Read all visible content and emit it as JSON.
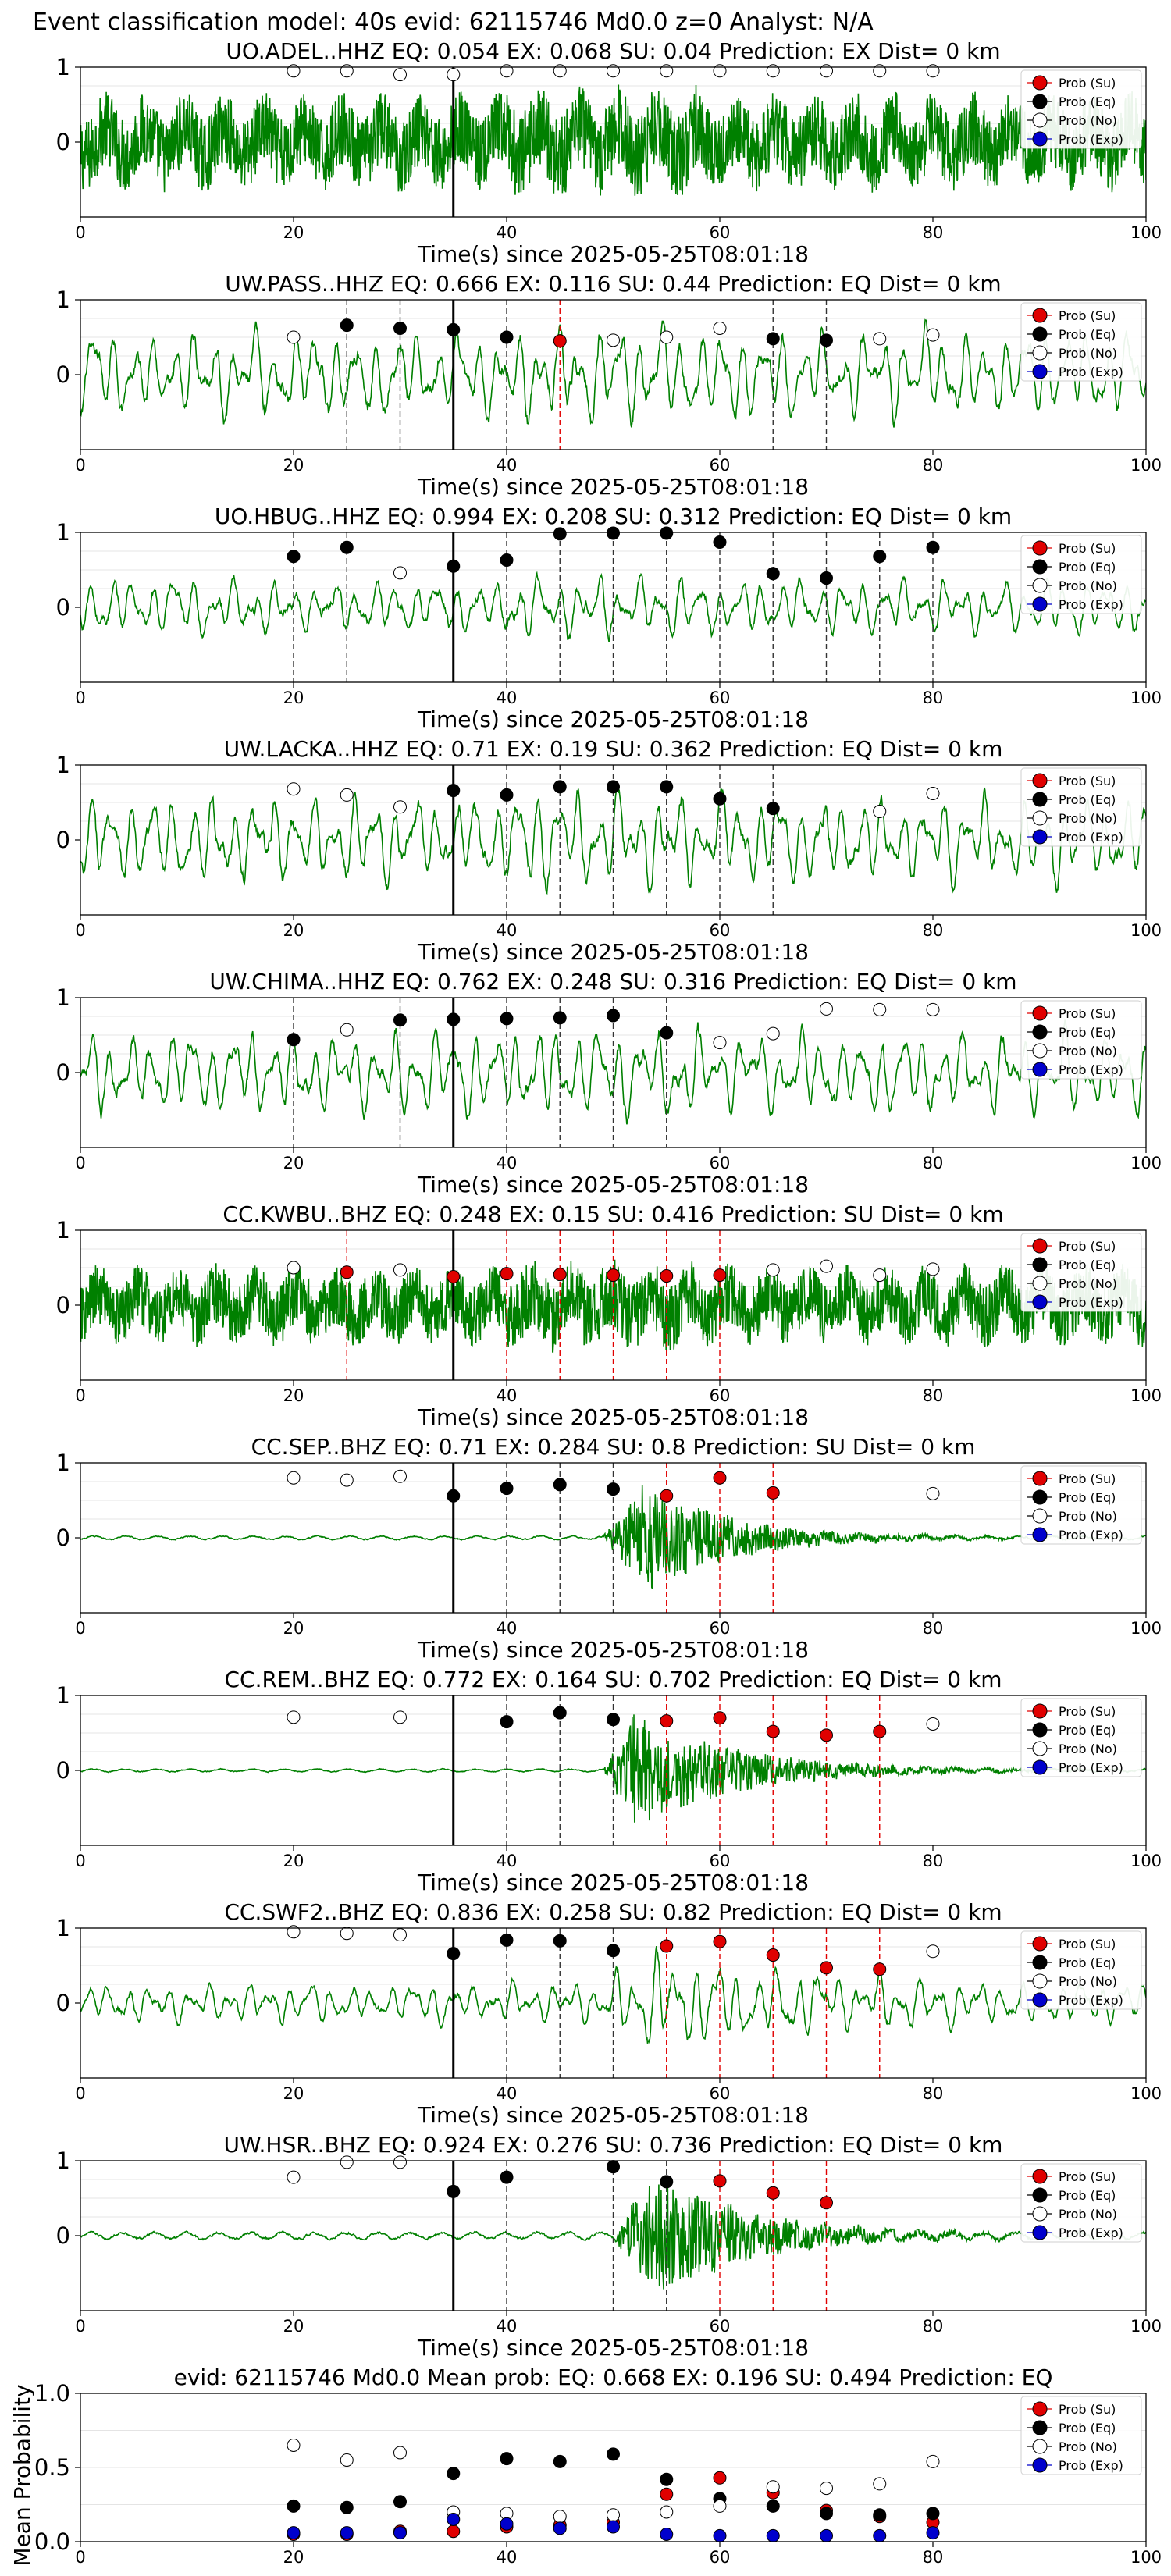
{
  "suptitle": "Event classification model: 40s evid: 62115746 Md0.0 z=0 Analyst: N/A",
  "colors": {
    "waveform": "#008000",
    "su": "#e00000",
    "eq": "#000000",
    "no_fill": "#ffffff",
    "exp": "#0000cc",
    "origin_line": "#000000",
    "eq_vline": "#333333",
    "su_vline": "#e00000"
  },
  "legend_labels": [
    "Prob (Su)",
    "Prob (Eq)",
    "Prob (No)",
    "Prob (Exp)"
  ],
  "chart_data": [
    {
      "type": "line",
      "title": "UO.ADEL..HHZ   EQ: 0.054  EX: 0.068  SU: 0.04   Prediction: EX    Dist= 0 km",
      "xlabel": "Time(s) since 2025-05-25T08:01:18",
      "xlim": [
        0,
        100
      ],
      "ylim": [
        -1,
        1
      ],
      "xticks": [
        "0",
        "20",
        "40",
        "60",
        "80",
        "100"
      ],
      "yticks": [
        "0",
        "1"
      ],
      "legend_position": "upper-right",
      "waveform": {
        "style": "noisy",
        "base_amp": 0.55,
        "burst": null
      },
      "origin_time": 35,
      "prob_markers": [
        {
          "t": 20,
          "class": "no",
          "p": 0.95
        },
        {
          "t": 25,
          "class": "no",
          "p": 0.95
        },
        {
          "t": 30,
          "class": "no",
          "p": 0.9
        },
        {
          "t": 35,
          "class": "no",
          "p": 0.9
        },
        {
          "t": 40,
          "class": "no",
          "p": 0.95
        },
        {
          "t": 45,
          "class": "no",
          "p": 0.95
        },
        {
          "t": 50,
          "class": "no",
          "p": 0.95
        },
        {
          "t": 55,
          "class": "no",
          "p": 0.95
        },
        {
          "t": 60,
          "class": "no",
          "p": 0.95
        },
        {
          "t": 65,
          "class": "no",
          "p": 0.95
        },
        {
          "t": 70,
          "class": "no",
          "p": 0.95
        },
        {
          "t": 75,
          "class": "no",
          "p": 0.95
        },
        {
          "t": 80,
          "class": "no",
          "p": 0.95
        }
      ]
    },
    {
      "type": "line",
      "title": "UW.PASS..HHZ   EQ: 0.666  EX: 0.116  SU: 0.44   Prediction: EQ    Dist= 0 km",
      "xlabel": "Time(s) since 2025-05-25T08:01:18",
      "xlim": [
        0,
        100
      ],
      "ylim": [
        -1,
        1
      ],
      "xticks": [
        "0",
        "20",
        "40",
        "60",
        "80",
        "100"
      ],
      "yticks": [
        "0",
        "1"
      ],
      "legend_position": "upper-right",
      "waveform": {
        "style": "smooth",
        "base_amp": 0.55,
        "burst": null
      },
      "origin_time": 35,
      "prob_markers": [
        {
          "t": 20,
          "class": "no",
          "p": 0.5
        },
        {
          "t": 25,
          "class": "eq",
          "p": 0.66
        },
        {
          "t": 30,
          "class": "eq",
          "p": 0.62
        },
        {
          "t": 35,
          "class": "eq",
          "p": 0.6
        },
        {
          "t": 40,
          "class": "eq",
          "p": 0.5
        },
        {
          "t": 45,
          "class": "su",
          "p": 0.45
        },
        {
          "t": 50,
          "class": "no",
          "p": 0.46
        },
        {
          "t": 55,
          "class": "no",
          "p": 0.5
        },
        {
          "t": 60,
          "class": "no",
          "p": 0.62
        },
        {
          "t": 65,
          "class": "eq",
          "p": 0.48
        },
        {
          "t": 70,
          "class": "eq",
          "p": 0.46
        },
        {
          "t": 75,
          "class": "no",
          "p": 0.48
        },
        {
          "t": 80,
          "class": "no",
          "p": 0.53
        }
      ]
    },
    {
      "type": "line",
      "title": "UO.HBUG..HHZ   EQ: 0.994  EX: 0.208  SU: 0.312   Prediction: EQ    Dist= 0 km",
      "xlabel": "Time(s) since 2025-05-25T08:01:18",
      "xlim": [
        0,
        100
      ],
      "ylim": [
        -1,
        1
      ],
      "xticks": [
        "0",
        "20",
        "40",
        "60",
        "80",
        "100"
      ],
      "yticks": [
        "0",
        "1"
      ],
      "legend_position": "upper-right",
      "waveform": {
        "style": "smooth",
        "base_amp": 0.35,
        "burst": null
      },
      "origin_time": 35,
      "prob_markers": [
        {
          "t": 20,
          "class": "eq",
          "p": 0.68
        },
        {
          "t": 25,
          "class": "eq",
          "p": 0.8
        },
        {
          "t": 30,
          "class": "no",
          "p": 0.46
        },
        {
          "t": 35,
          "class": "eq",
          "p": 0.55
        },
        {
          "t": 40,
          "class": "eq",
          "p": 0.63
        },
        {
          "t": 45,
          "class": "eq",
          "p": 0.98
        },
        {
          "t": 50,
          "class": "eq",
          "p": 0.99
        },
        {
          "t": 55,
          "class": "eq",
          "p": 0.99
        },
        {
          "t": 60,
          "class": "eq",
          "p": 0.87
        },
        {
          "t": 65,
          "class": "eq",
          "p": 0.45
        },
        {
          "t": 70,
          "class": "eq",
          "p": 0.39
        },
        {
          "t": 75,
          "class": "eq",
          "p": 0.68
        },
        {
          "t": 80,
          "class": "eq",
          "p": 0.8
        }
      ]
    },
    {
      "type": "line",
      "title": "UW.LACKA..HHZ   EQ: 0.71  EX: 0.19  SU: 0.362   Prediction: EQ    Dist= 0 km",
      "xlabel": "Time(s) since 2025-05-25T08:01:18",
      "xlim": [
        0,
        100
      ],
      "ylim": [
        -1,
        1
      ],
      "xticks": [
        "0",
        "20",
        "40",
        "60",
        "80",
        "100"
      ],
      "yticks": [
        "0",
        "1"
      ],
      "legend_position": "upper-right",
      "waveform": {
        "style": "smooth",
        "base_amp": 0.55,
        "burst": null
      },
      "origin_time": 35,
      "prob_markers": [
        {
          "t": 20,
          "class": "no",
          "p": 0.68
        },
        {
          "t": 25,
          "class": "no",
          "p": 0.6
        },
        {
          "t": 30,
          "class": "no",
          "p": 0.44
        },
        {
          "t": 35,
          "class": "eq",
          "p": 0.66
        },
        {
          "t": 40,
          "class": "eq",
          "p": 0.6
        },
        {
          "t": 45,
          "class": "eq",
          "p": 0.71
        },
        {
          "t": 50,
          "class": "eq",
          "p": 0.71
        },
        {
          "t": 55,
          "class": "eq",
          "p": 0.71
        },
        {
          "t": 60,
          "class": "eq",
          "p": 0.55
        },
        {
          "t": 65,
          "class": "eq",
          "p": 0.42
        },
        {
          "t": 75,
          "class": "no",
          "p": 0.38
        },
        {
          "t": 80,
          "class": "no",
          "p": 0.62
        }
      ]
    },
    {
      "type": "line",
      "title": "UW.CHIMA..HHZ   EQ: 0.762  EX: 0.248  SU: 0.316   Prediction: EQ    Dist= 0 km",
      "xlabel": "Time(s) since 2025-05-25T08:01:18",
      "xlim": [
        0,
        100
      ],
      "ylim": [
        -1,
        1
      ],
      "xticks": [
        "0",
        "20",
        "40",
        "60",
        "80",
        "100"
      ],
      "yticks": [
        "0",
        "1"
      ],
      "legend_position": "upper-right",
      "waveform": {
        "style": "smooth",
        "base_amp": 0.5,
        "burst": null
      },
      "origin_time": 35,
      "prob_markers": [
        {
          "t": 20,
          "class": "eq",
          "p": 0.44
        },
        {
          "t": 25,
          "class": "no",
          "p": 0.57
        },
        {
          "t": 30,
          "class": "eq",
          "p": 0.7
        },
        {
          "t": 35,
          "class": "eq",
          "p": 0.71
        },
        {
          "t": 40,
          "class": "eq",
          "p": 0.72
        },
        {
          "t": 45,
          "class": "eq",
          "p": 0.73
        },
        {
          "t": 50,
          "class": "eq",
          "p": 0.76
        },
        {
          "t": 55,
          "class": "eq",
          "p": 0.53
        },
        {
          "t": 60,
          "class": "no",
          "p": 0.4
        },
        {
          "t": 65,
          "class": "no",
          "p": 0.52
        },
        {
          "t": 70,
          "class": "no",
          "p": 0.85
        },
        {
          "t": 75,
          "class": "no",
          "p": 0.84
        },
        {
          "t": 80,
          "class": "no",
          "p": 0.84
        }
      ]
    },
    {
      "type": "line",
      "title": "CC.KWBU..BHZ   EQ: 0.248  EX: 0.15  SU: 0.416   Prediction: SU    Dist= 0 km",
      "xlabel": "Time(s) since 2025-05-25T08:01:18",
      "xlim": [
        0,
        100
      ],
      "ylim": [
        -1,
        1
      ],
      "xticks": [
        "0",
        "20",
        "40",
        "60",
        "80",
        "100"
      ],
      "yticks": [
        "0",
        "1"
      ],
      "legend_position": "upper-right",
      "waveform": {
        "style": "noisy",
        "base_amp": 0.45,
        "burst": null
      },
      "origin_time": 35,
      "prob_markers": [
        {
          "t": 20,
          "class": "no",
          "p": 0.5
        },
        {
          "t": 25,
          "class": "su",
          "p": 0.44
        },
        {
          "t": 30,
          "class": "no",
          "p": 0.47
        },
        {
          "t": 35,
          "class": "su",
          "p": 0.38
        },
        {
          "t": 40,
          "class": "su",
          "p": 0.42
        },
        {
          "t": 45,
          "class": "su",
          "p": 0.41
        },
        {
          "t": 50,
          "class": "su",
          "p": 0.4
        },
        {
          "t": 55,
          "class": "su",
          "p": 0.39
        },
        {
          "t": 60,
          "class": "su",
          "p": 0.4
        },
        {
          "t": 65,
          "class": "no",
          "p": 0.47
        },
        {
          "t": 70,
          "class": "no",
          "p": 0.52
        },
        {
          "t": 75,
          "class": "no",
          "p": 0.4
        },
        {
          "t": 80,
          "class": "no",
          "p": 0.48
        }
      ]
    },
    {
      "type": "line",
      "title": "CC.SEP..BHZ   EQ: 0.71  EX: 0.284  SU: 0.8   Prediction: SU    Dist= 0 km",
      "xlabel": "Time(s) since 2025-05-25T08:01:18",
      "xlim": [
        0,
        100
      ],
      "ylim": [
        -1,
        1
      ],
      "xticks": [
        "0",
        "20",
        "40",
        "60",
        "80",
        "100"
      ],
      "yticks": [
        "0",
        "1"
      ],
      "legend_position": "upper-right",
      "waveform": {
        "style": "quiet",
        "base_amp": 0.03,
        "burst": {
          "start": 49,
          "peak": 53,
          "amp": 0.75,
          "decay": 8
        }
      },
      "origin_time": 35,
      "prob_markers": [
        {
          "t": 20,
          "class": "no",
          "p": 0.8
        },
        {
          "t": 25,
          "class": "no",
          "p": 0.77
        },
        {
          "t": 30,
          "class": "no",
          "p": 0.82
        },
        {
          "t": 35,
          "class": "eq",
          "p": 0.56
        },
        {
          "t": 40,
          "class": "eq",
          "p": 0.66
        },
        {
          "t": 45,
          "class": "eq",
          "p": 0.71
        },
        {
          "t": 50,
          "class": "eq",
          "p": 0.65
        },
        {
          "t": 55,
          "class": "su",
          "p": 0.56
        },
        {
          "t": 60,
          "class": "su",
          "p": 0.8
        },
        {
          "t": 65,
          "class": "su",
          "p": 0.6
        },
        {
          "t": 80,
          "class": "no",
          "p": 0.59
        }
      ]
    },
    {
      "type": "line",
      "title": "CC.REM..BHZ   EQ: 0.772  EX: 0.164  SU: 0.702   Prediction: EQ    Dist= 0 km",
      "xlabel": "Time(s) since 2025-05-25T08:01:18",
      "xlim": [
        0,
        100
      ],
      "ylim": [
        -1,
        1
      ],
      "xticks": [
        "0",
        "20",
        "40",
        "60",
        "80",
        "100"
      ],
      "yticks": [
        "0",
        "1"
      ],
      "legend_position": "upper-right",
      "waveform": {
        "style": "quiet",
        "base_amp": 0.025,
        "burst": {
          "start": 49,
          "peak": 52,
          "amp": 0.75,
          "decay": 10
        }
      },
      "origin_time": 35,
      "prob_markers": [
        {
          "t": 20,
          "class": "no",
          "p": 0.71
        },
        {
          "t": 30,
          "class": "no",
          "p": 0.71
        },
        {
          "t": 40,
          "class": "eq",
          "p": 0.65
        },
        {
          "t": 45,
          "class": "eq",
          "p": 0.77
        },
        {
          "t": 50,
          "class": "eq",
          "p": 0.68
        },
        {
          "t": 55,
          "class": "su",
          "p": 0.66
        },
        {
          "t": 60,
          "class": "su",
          "p": 0.7
        },
        {
          "t": 65,
          "class": "su",
          "p": 0.52
        },
        {
          "t": 70,
          "class": "su",
          "p": 0.47
        },
        {
          "t": 75,
          "class": "su",
          "p": 0.52
        },
        {
          "t": 80,
          "class": "no",
          "p": 0.62
        }
      ]
    },
    {
      "type": "line",
      "title": "CC.SWF2..BHZ   EQ: 0.836  EX: 0.258  SU: 0.82   Prediction: EQ    Dist= 0 km",
      "xlabel": "Time(s) since 2025-05-25T08:01:18",
      "xlim": [
        0,
        100
      ],
      "ylim": [
        -1,
        1
      ],
      "xticks": [
        "0",
        "20",
        "40",
        "60",
        "80",
        "100"
      ],
      "yticks": [
        "0",
        "1"
      ],
      "legend_position": "upper-right",
      "waveform": {
        "style": "smooth",
        "base_amp": 0.25,
        "burst": {
          "start": 49,
          "peak": 54,
          "amp": 0.7,
          "decay": 14
        }
      },
      "origin_time": 35,
      "prob_markers": [
        {
          "t": 20,
          "class": "no",
          "p": 0.95
        },
        {
          "t": 25,
          "class": "no",
          "p": 0.93
        },
        {
          "t": 30,
          "class": "no",
          "p": 0.91
        },
        {
          "t": 35,
          "class": "eq",
          "p": 0.66
        },
        {
          "t": 40,
          "class": "eq",
          "p": 0.84
        },
        {
          "t": 45,
          "class": "eq",
          "p": 0.83
        },
        {
          "t": 50,
          "class": "eq",
          "p": 0.7
        },
        {
          "t": 55,
          "class": "su",
          "p": 0.76
        },
        {
          "t": 60,
          "class": "su",
          "p": 0.82
        },
        {
          "t": 65,
          "class": "su",
          "p": 0.64
        },
        {
          "t": 70,
          "class": "su",
          "p": 0.47
        },
        {
          "t": 75,
          "class": "su",
          "p": 0.45
        },
        {
          "t": 80,
          "class": "no",
          "p": 0.69
        }
      ]
    },
    {
      "type": "line",
      "title": "UW.HSR..BHZ   EQ: 0.924  EX: 0.276  SU: 0.736   Prediction: EQ    Dist= 0 km",
      "xlabel": "Time(s) since 2025-05-25T08:01:18",
      "xlim": [
        0,
        100
      ],
      "ylim": [
        -1,
        1
      ],
      "xticks": [
        "0",
        "20",
        "40",
        "60",
        "80",
        "100"
      ],
      "yticks": [
        "0",
        "1"
      ],
      "legend_position": "upper-right",
      "waveform": {
        "style": "quiet",
        "base_amp": 0.06,
        "burst": {
          "start": 50,
          "peak": 54,
          "amp": 0.85,
          "decay": 9
        }
      },
      "origin_time": 35,
      "prob_markers": [
        {
          "t": 20,
          "class": "no",
          "p": 0.78
        },
        {
          "t": 25,
          "class": "no",
          "p": 0.98
        },
        {
          "t": 30,
          "class": "no",
          "p": 0.98
        },
        {
          "t": 35,
          "class": "eq",
          "p": 0.59
        },
        {
          "t": 40,
          "class": "eq",
          "p": 0.78
        },
        {
          "t": 50,
          "class": "eq",
          "p": 0.92
        },
        {
          "t": 55,
          "class": "eq",
          "p": 0.72
        },
        {
          "t": 60,
          "class": "su",
          "p": 0.73
        },
        {
          "t": 65,
          "class": "su",
          "p": 0.57
        },
        {
          "t": 70,
          "class": "su",
          "p": 0.44
        }
      ]
    },
    {
      "type": "scatter",
      "title": "evid: 62115746  Md0.0   Mean prob:   EQ: 0.668  EX: 0.196  SU: 0.494   Prediction: EQ",
      "xlabel": "",
      "ylabel": "Mean Probability",
      "xlim": [
        0,
        100
      ],
      "ylim": [
        0,
        1
      ],
      "xticks": [
        "0",
        "20",
        "40",
        "60",
        "80",
        "100"
      ],
      "yticks": [
        "0.0",
        "0.5",
        "1.0"
      ],
      "legend_position": "upper-right",
      "x": [
        20,
        25,
        30,
        35,
        40,
        45,
        50,
        55,
        60,
        65,
        70,
        75,
        80
      ],
      "series": [
        {
          "name": "Prob (Su)",
          "class": "su",
          "values": [
            0.05,
            0.05,
            0.07,
            0.07,
            0.1,
            0.11,
            0.13,
            0.32,
            0.43,
            0.33,
            0.21,
            0.17,
            0.13
          ]
        },
        {
          "name": "Prob (Eq)",
          "class": "eq",
          "values": [
            0.24,
            0.23,
            0.27,
            0.46,
            0.56,
            0.54,
            0.59,
            0.42,
            0.29,
            0.24,
            0.19,
            0.18,
            0.19
          ]
        },
        {
          "name": "Prob (No)",
          "class": "no",
          "values": [
            0.65,
            0.55,
            0.6,
            0.2,
            0.19,
            0.17,
            0.18,
            0.2,
            0.24,
            0.37,
            0.36,
            0.39,
            0.54
          ]
        },
        {
          "name": "Prob (Exp)",
          "class": "exp",
          "values": [
            0.06,
            0.06,
            0.06,
            0.15,
            0.12,
            0.09,
            0.1,
            0.05,
            0.04,
            0.04,
            0.04,
            0.04,
            0.06
          ]
        }
      ]
    }
  ]
}
